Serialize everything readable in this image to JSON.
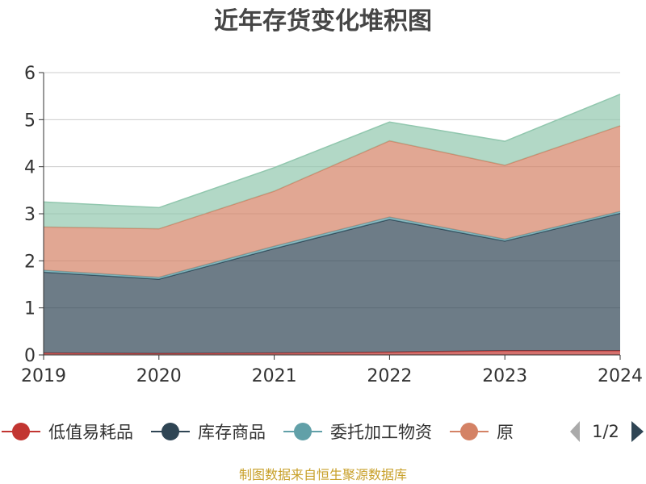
{
  "chart_data": {
    "type": "area",
    "stacked": true,
    "title": "近年存货变化堆积图",
    "x": [
      "2019",
      "2020",
      "2021",
      "2022",
      "2023",
      "2024"
    ],
    "ylim": [
      0,
      6
    ],
    "yticks": [
      "0",
      "1",
      "2",
      "3",
      "4",
      "5",
      "6"
    ],
    "grid": true,
    "series": [
      {
        "name": "低值易耗品",
        "values": [
          0.04,
          0.03,
          0.04,
          0.06,
          0.09,
          0.09
        ],
        "color": "#c23531"
      },
      {
        "name": "库存商品",
        "values": [
          1.72,
          1.58,
          2.22,
          2.82,
          2.33,
          2.92
        ],
        "color": "#2f4554"
      },
      {
        "name": "委托加工物资",
        "values": [
          0.04,
          0.04,
          0.05,
          0.05,
          0.04,
          0.04
        ],
        "color": "#61a0a8"
      },
      {
        "name": "原材料",
        "values": [
          0.92,
          1.03,
          1.17,
          1.62,
          1.57,
          1.82
        ],
        "color": "#d48265"
      },
      {
        "name": "",
        "values": [
          0.53,
          0.45,
          0.5,
          0.4,
          0.51,
          0.67
        ],
        "color": "#91c7ae"
      }
    ]
  },
  "legend": {
    "items": [
      {
        "label": "低值易耗品",
        "color": "#c23531"
      },
      {
        "label": "库存商品",
        "color": "#2f4554"
      },
      {
        "label": "委托加工物资",
        "color": "#61a0a8"
      },
      {
        "label": "原",
        "color": "#d48265"
      }
    ],
    "page": "1/2",
    "placement": "bottom"
  },
  "footer": {
    "source": "制图数据来自恒生聚源数据库"
  }
}
